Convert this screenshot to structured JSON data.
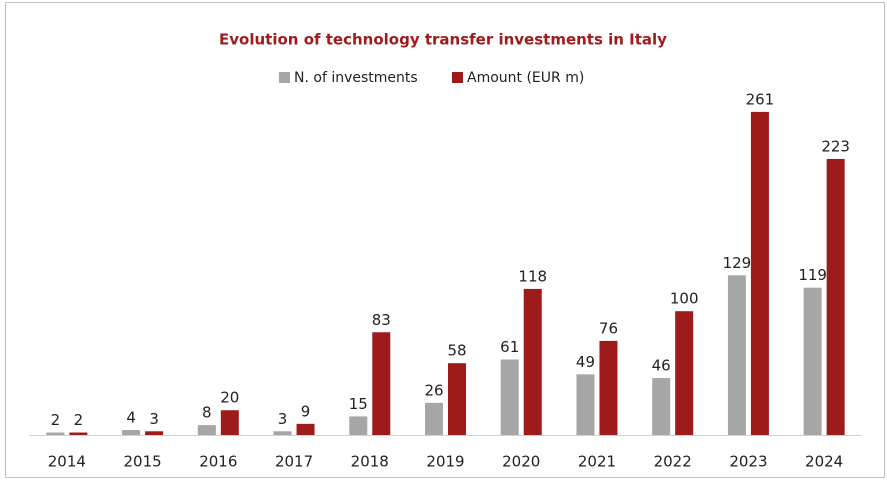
{
  "chart_data": {
    "type": "bar",
    "title": "Evolution of technology transfer investments in Italy",
    "categories": [
      "2014",
      "2015",
      "2016",
      "2017",
      "2018",
      "2019",
      "2020",
      "2021",
      "2022",
      "2023",
      "2024"
    ],
    "series": [
      {
        "name": "N. of investments",
        "color": "#a6a6a6",
        "values": [
          2,
          4,
          8,
          3,
          15,
          26,
          61,
          49,
          46,
          129,
          119
        ]
      },
      {
        "name": "Amount (EUR m)",
        "color": "#9e1b1b",
        "values": [
          2,
          3,
          20,
          9,
          83,
          58,
          118,
          76,
          100,
          261,
          223
        ]
      }
    ],
    "ylim": [
      0,
      290
    ],
    "legend": "top"
  }
}
